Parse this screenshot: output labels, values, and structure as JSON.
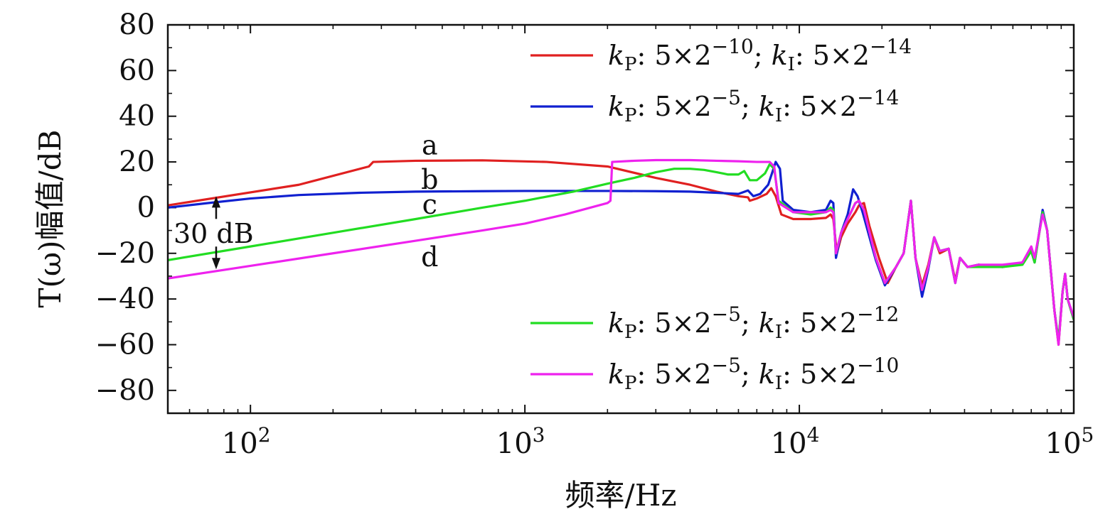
{
  "chart_data": {
    "type": "line",
    "xscale": "log",
    "xlabel": "频率/Hz",
    "ylabel": "T(ω)幅值/dB",
    "xlim": [
      50,
      100000
    ],
    "ylim": [
      -90,
      80
    ],
    "x_ticks": [
      {
        "value": 100,
        "mantissa": "10",
        "exp": "2"
      },
      {
        "value": 1000,
        "mantissa": "10",
        "exp": "3"
      },
      {
        "value": 10000,
        "mantissa": "10",
        "exp": "4"
      },
      {
        "value": 100000,
        "mantissa": "10",
        "exp": "5"
      }
    ],
    "y_ticks": [
      {
        "value": 80,
        "label": "80"
      },
      {
        "value": 60,
        "label": "60"
      },
      {
        "value": 40,
        "label": "40"
      },
      {
        "value": 20,
        "label": "20"
      },
      {
        "value": 0,
        "label": "0"
      },
      {
        "value": -20,
        "label": "−20"
      },
      {
        "value": -40,
        "label": "−40"
      },
      {
        "value": -60,
        "label": "−60"
      },
      {
        "value": -80,
        "label": "−80"
      }
    ],
    "legend": [
      {
        "series": 0,
        "kp_exp": "−10",
        "ki_exp": "−14"
      },
      {
        "series": 1,
        "kp_exp": "−5",
        "ki_exp": "−14"
      },
      {
        "series": 2,
        "kp_exp": "−5",
        "ki_exp": "−12"
      },
      {
        "series": 3,
        "kp_exp": "−5",
        "ki_exp": "−10"
      }
    ],
    "legend_text": {
      "kp_symbol": "k",
      "kp_sub": "P",
      "ki_symbol": "k",
      "ki_sub": "I",
      "base": ": 5×2",
      "sep": "; "
    },
    "annotations": {
      "curve_labels": [
        {
          "text": "a",
          "x": 450,
          "y": 27
        },
        {
          "text": "b",
          "x": 450,
          "y": 12
        },
        {
          "text": "c",
          "x": 450,
          "y": 1
        },
        {
          "text": "d",
          "x": 450,
          "y": -22
        }
      ],
      "gap_label": "30 dB",
      "gap_arrow": {
        "x": 75,
        "y_top": 5,
        "y_bottom": -27
      }
    },
    "series": [
      {
        "color": "#e02020",
        "points": [
          [
            50,
            1
          ],
          [
            150,
            10
          ],
          [
            270,
            18
          ],
          [
            280,
            20
          ],
          [
            400,
            20.5
          ],
          [
            700,
            20.7
          ],
          [
            1200,
            20
          ],
          [
            2000,
            18
          ],
          [
            3000,
            13
          ],
          [
            4000,
            10
          ],
          [
            5000,
            7
          ],
          [
            6000,
            5
          ],
          [
            6500,
            4.5
          ],
          [
            6600,
            3
          ],
          [
            7000,
            4
          ],
          [
            7600,
            6
          ],
          [
            7900,
            8.5
          ],
          [
            8200,
            5
          ],
          [
            8600,
            -3
          ],
          [
            9500,
            -5
          ],
          [
            11000,
            -5
          ],
          [
            12500,
            -4.5
          ],
          [
            13000,
            -3
          ],
          [
            13300,
            -5
          ],
          [
            13700,
            -20
          ],
          [
            14200,
            -13
          ],
          [
            15000,
            -7
          ],
          [
            16000,
            -2
          ],
          [
            16500,
            1
          ],
          [
            17200,
            2
          ],
          [
            18000,
            -8
          ],
          [
            19500,
            -22
          ],
          [
            21000,
            -33
          ],
          [
            22500,
            -26
          ],
          [
            24000,
            -20
          ],
          [
            25500,
            3
          ],
          [
            26500,
            -22
          ],
          [
            28000,
            -34
          ],
          [
            29500,
            -25
          ],
          [
            31000,
            -13
          ],
          [
            32500,
            -20
          ],
          [
            35000,
            -18
          ],
          [
            37000,
            -32
          ],
          [
            38500,
            -22
          ],
          [
            41000,
            -26
          ],
          [
            45000,
            -25
          ],
          [
            55000,
            -26
          ],
          [
            65000,
            -24
          ],
          [
            70000,
            -18
          ],
          [
            72000,
            -23
          ],
          [
            77000,
            -2
          ],
          [
            80000,
            -10
          ],
          [
            85000,
            -45
          ],
          [
            88000,
            -60
          ],
          [
            91000,
            -37
          ],
          [
            93000,
            -29
          ],
          [
            95000,
            -40
          ],
          [
            100000,
            -49
          ]
        ]
      },
      {
        "color": "#1020d0",
        "points": [
          [
            50,
            0
          ],
          [
            70,
            2
          ],
          [
            100,
            4
          ],
          [
            150,
            5.5
          ],
          [
            250,
            6.5
          ],
          [
            400,
            7
          ],
          [
            700,
            7.2
          ],
          [
            1000,
            7.3
          ],
          [
            2000,
            7.3
          ],
          [
            3000,
            7.2
          ],
          [
            4000,
            7
          ],
          [
            5000,
            6.5
          ],
          [
            6000,
            6
          ],
          [
            6500,
            7.5
          ],
          [
            6800,
            5
          ],
          [
            7200,
            6
          ],
          [
            7700,
            10
          ],
          [
            8000,
            16
          ],
          [
            8200,
            20
          ],
          [
            8500,
            17
          ],
          [
            8700,
            3
          ],
          [
            9500,
            -1
          ],
          [
            11000,
            -2
          ],
          [
            12500,
            -1
          ],
          [
            13000,
            3
          ],
          [
            13300,
            2
          ],
          [
            13600,
            -22
          ],
          [
            14200,
            -11
          ],
          [
            15000,
            -3
          ],
          [
            15700,
            8
          ],
          [
            16300,
            5
          ],
          [
            17000,
            -2
          ],
          [
            19000,
            -23
          ],
          [
            20500,
            -34
          ],
          [
            22500,
            -26
          ],
          [
            24000,
            -20
          ],
          [
            25500,
            3
          ],
          [
            26500,
            -22
          ],
          [
            28000,
            -39
          ],
          [
            29500,
            -27
          ],
          [
            31000,
            -13
          ],
          [
            32500,
            -19
          ],
          [
            35000,
            -18
          ],
          [
            37000,
            -33
          ],
          [
            38500,
            -22
          ],
          [
            41000,
            -26
          ],
          [
            45000,
            -25
          ],
          [
            55000,
            -26
          ],
          [
            65000,
            -24
          ],
          [
            70000,
            -19
          ],
          [
            72000,
            -24
          ],
          [
            77000,
            -1
          ],
          [
            80000,
            -10
          ],
          [
            85000,
            -45
          ],
          [
            88000,
            -59
          ],
          [
            91000,
            -37
          ],
          [
            93000,
            -29
          ],
          [
            95000,
            -40
          ],
          [
            100000,
            -49
          ]
        ]
      },
      {
        "color": "#22dd22",
        "points": [
          [
            50,
            -23
          ],
          [
            100,
            -17
          ],
          [
            200,
            -11
          ],
          [
            400,
            -5
          ],
          [
            700,
            0
          ],
          [
            1000,
            3
          ],
          [
            1500,
            7
          ],
          [
            2000,
            10.5
          ],
          [
            2500,
            13
          ],
          [
            3000,
            15.5
          ],
          [
            3500,
            17
          ],
          [
            4000,
            17
          ],
          [
            4500,
            16.5
          ],
          [
            5000,
            15.5
          ],
          [
            5500,
            14.5
          ],
          [
            6000,
            14.5
          ],
          [
            6300,
            16
          ],
          [
            6600,
            12
          ],
          [
            7000,
            12
          ],
          [
            7500,
            15
          ],
          [
            7800,
            19
          ],
          [
            8100,
            17
          ],
          [
            8400,
            3
          ],
          [
            9500,
            -2
          ],
          [
            11000,
            -3
          ],
          [
            12500,
            -2
          ],
          [
            13000,
            0
          ],
          [
            13300,
            -1
          ],
          [
            13600,
            -20
          ],
          [
            14200,
            -11
          ],
          [
            15000,
            -5
          ],
          [
            16000,
            2
          ],
          [
            16500,
            3
          ],
          [
            17200,
            -1
          ],
          [
            19000,
            -22
          ],
          [
            20500,
            -33
          ],
          [
            22500,
            -26
          ],
          [
            24000,
            -20
          ],
          [
            25500,
            3
          ],
          [
            26500,
            -22
          ],
          [
            28000,
            -36
          ],
          [
            29500,
            -26
          ],
          [
            31000,
            -13
          ],
          [
            32500,
            -19
          ],
          [
            35000,
            -18
          ],
          [
            37000,
            -33
          ],
          [
            38500,
            -22
          ],
          [
            41000,
            -26
          ],
          [
            45000,
            -26
          ],
          [
            55000,
            -26
          ],
          [
            65000,
            -25
          ],
          [
            70000,
            -19
          ],
          [
            72000,
            -24
          ],
          [
            77000,
            -2
          ],
          [
            80000,
            -10
          ],
          [
            85000,
            -45
          ],
          [
            88000,
            -58
          ],
          [
            91000,
            -37
          ],
          [
            93000,
            -29
          ],
          [
            95000,
            -40
          ],
          [
            100000,
            -49
          ]
        ]
      },
      {
        "color": "#ee22ee",
        "points": [
          [
            50,
            -31
          ],
          [
            100,
            -25.5
          ],
          [
            200,
            -20
          ],
          [
            400,
            -14.5
          ],
          [
            700,
            -10
          ],
          [
            1000,
            -7
          ],
          [
            1400,
            -3
          ],
          [
            2000,
            2
          ],
          [
            2050,
            3
          ],
          [
            2080,
            20
          ],
          [
            2500,
            20.5
          ],
          [
            3000,
            20.8
          ],
          [
            4000,
            20.8
          ],
          [
            5000,
            20.5
          ],
          [
            6000,
            20.3
          ],
          [
            7000,
            20
          ],
          [
            7500,
            20
          ],
          [
            7800,
            20
          ],
          [
            8100,
            18
          ],
          [
            8400,
            2
          ],
          [
            9500,
            -2
          ],
          [
            11000,
            -2
          ],
          [
            12500,
            -2
          ],
          [
            13000,
            -1
          ],
          [
            13300,
            -2
          ],
          [
            13600,
            -20
          ],
          [
            14200,
            -11
          ],
          [
            15000,
            -5
          ],
          [
            16000,
            2
          ],
          [
            16500,
            3
          ],
          [
            17200,
            -1
          ],
          [
            19000,
            -22
          ],
          [
            20500,
            -33
          ],
          [
            22500,
            -26
          ],
          [
            24000,
            -20
          ],
          [
            25500,
            3
          ],
          [
            26500,
            -22
          ],
          [
            28000,
            -36
          ],
          [
            29500,
            -26
          ],
          [
            31000,
            -13
          ],
          [
            32500,
            -19
          ],
          [
            35000,
            -18
          ],
          [
            37000,
            -33
          ],
          [
            38500,
            -22
          ],
          [
            41000,
            -26
          ],
          [
            45000,
            -25
          ],
          [
            55000,
            -25
          ],
          [
            65000,
            -24
          ],
          [
            70000,
            -17
          ],
          [
            72000,
            -22
          ],
          [
            77000,
            -3
          ],
          [
            80000,
            -10
          ],
          [
            85000,
            -45
          ],
          [
            88000,
            -60
          ],
          [
            91000,
            -37
          ],
          [
            93000,
            -29
          ],
          [
            95000,
            -40
          ],
          [
            100000,
            -48
          ]
        ]
      }
    ]
  }
}
